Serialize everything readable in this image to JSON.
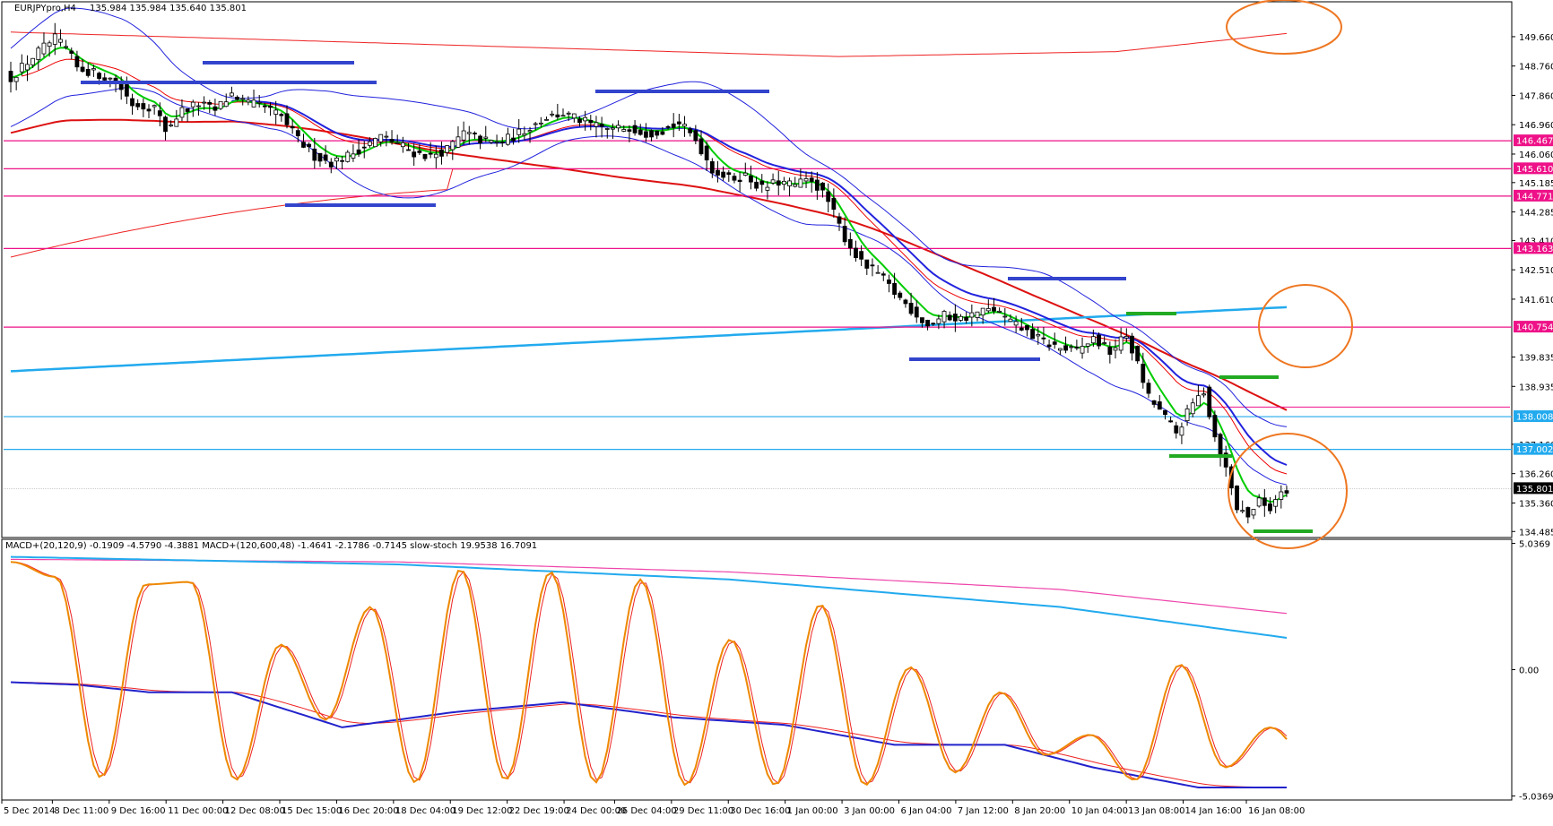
{
  "window": {
    "title": "EURJPYpro,H4",
    "ohlc": "135.984 135.984 135.640 135.801"
  },
  "indicator_title": "MACD+(20,120,9) -0.1909 -4.5790 -4.3881  MACD+(120,600,48) -1.4641 -2.1786 -0.7145  slow-stoch 19.9538 16.7091",
  "colors": {
    "candle_bull": "#ffffff",
    "candle_bear": "#000000",
    "bollinger": "#2222dd",
    "ema_fast": "#00cc00",
    "ema_mid": "#ee0000",
    "ema_slow": "#2222dd",
    "sma_long": "#dd1111",
    "envelope": "#ee2222",
    "cyan": "#22aaee",
    "magenta": "#ee1188",
    "markers_blue": "#3344cc",
    "markers_green": "#22aa22",
    "circles": "#ee7722",
    "stoch_main": "#ee8800",
    "stoch_signal": "#ee2222",
    "macd1": "#2222cc",
    "macd2_main": "#22aaee",
    "macd2_signal": "#ee44aa"
  },
  "chart_data": [
    {
      "type": "candlestick",
      "symbol": "EURJPYpro",
      "timeframe": "H4",
      "ylim": [
        134.3,
        150.4
      ],
      "y_ticks": [
        149.66,
        148.76,
        147.86,
        146.96,
        146.06,
        145.185,
        144.285,
        143.41,
        142.51,
        141.61,
        139.835,
        138.935,
        137.16,
        136.26,
        135.36,
        134.485
      ],
      "price_levels": [
        {
          "value": "146.467",
          "color": "#ee1188"
        },
        {
          "value": "145.610",
          "color": "#ee1188"
        },
        {
          "value": "144.771",
          "color": "#ee1188"
        },
        {
          "value": "143.163",
          "color": "#ee1188"
        },
        {
          "value": "140.754",
          "color": "#ee1188"
        },
        {
          "value": "138.008",
          "color": "#22aaee"
        },
        {
          "value": "137.002",
          "color": "#22aaee"
        },
        {
          "value": "135.801",
          "color": "#000000"
        }
      ],
      "extra_level": 138.3,
      "close_points": [
        [
          0,
          148.4
        ],
        [
          5,
          149.2
        ],
        [
          8,
          149.6
        ],
        [
          10,
          149.3
        ],
        [
          12,
          148.7
        ],
        [
          16,
          148.5
        ],
        [
          19,
          148.3
        ],
        [
          22,
          147.6
        ],
        [
          26,
          147.5
        ],
        [
          28,
          146.8
        ],
        [
          31,
          147.4
        ],
        [
          34,
          147.6
        ],
        [
          37,
          147.4
        ],
        [
          40,
          147.9
        ],
        [
          43,
          147.6
        ],
        [
          46,
          147.5
        ],
        [
          49,
          147.2
        ],
        [
          52,
          146.5
        ],
        [
          55,
          146.0
        ],
        [
          58,
          145.8
        ],
        [
          61,
          146.0
        ],
        [
          64,
          146.3
        ],
        [
          67,
          146.6
        ],
        [
          70,
          146.4
        ],
        [
          73,
          146.1
        ],
        [
          76,
          146.0
        ],
        [
          79,
          146.2
        ],
        [
          82,
          146.7
        ],
        [
          85,
          146.5
        ],
        [
          88,
          146.4
        ],
        [
          91,
          146.6
        ],
        [
          94,
          146.9
        ],
        [
          97,
          147.2
        ],
        [
          100,
          147.3
        ],
        [
          103,
          147.1
        ],
        [
          106,
          146.9
        ],
        [
          109,
          146.8
        ],
        [
          112,
          146.9
        ],
        [
          115,
          146.7
        ],
        [
          118,
          146.8
        ],
        [
          121,
          147.0
        ],
        [
          124,
          146.5
        ],
        [
          127,
          145.6
        ],
        [
          130,
          145.3
        ],
        [
          133,
          145.4
        ],
        [
          136,
          145.0
        ],
        [
          139,
          145.2
        ],
        [
          142,
          145.1
        ],
        [
          145,
          145.3
        ],
        [
          148,
          144.6
        ],
        [
          151,
          143.5
        ],
        [
          154,
          142.7
        ],
        [
          157,
          142.4
        ],
        [
          160,
          141.8
        ],
        [
          163,
          141.3
        ],
        [
          166,
          140.8
        ],
        [
          169,
          141.1
        ],
        [
          172,
          141.0
        ],
        [
          175,
          141.2
        ],
        [
          178,
          141.3
        ],
        [
          181,
          140.9
        ],
        [
          184,
          140.6
        ],
        [
          187,
          140.3
        ],
        [
          190,
          140.1
        ],
        [
          193,
          140.0
        ],
        [
          196,
          140.4
        ],
        [
          199,
          140.0
        ],
        [
          202,
          140.5
        ],
        [
          204,
          139.6
        ],
        [
          206,
          138.6
        ],
        [
          208,
          138.2
        ],
        [
          211,
          137.5
        ],
        [
          214,
          138.4
        ],
        [
          216,
          138.8
        ],
        [
          218,
          137.4
        ],
        [
          220,
          136.4
        ],
        [
          222,
          135.2
        ],
        [
          224,
          135.0
        ],
        [
          226,
          135.4
        ],
        [
          228,
          135.2
        ],
        [
          230,
          135.8
        ],
        [
          231,
          135.8
        ]
      ],
      "x_tick_labels": [
        "5 Dec 2014",
        "8 Dec 11:00",
        "9 Dec 16:00",
        "11 Dec 00:00",
        "12 Dec 08:00",
        "15 Dec 15:00",
        "16 Dec 20:00",
        "18 Dec 04:00",
        "19 Dec 12:00",
        "22 Dec 19:00",
        "24 Dec 00:00",
        "26 Dec 04:00",
        "29 Dec 11:00",
        "30 Dec 16:00",
        "1 Jan 00:00",
        "3 Jan 00:00",
        "6 Jan 04:00",
        "7 Jan 12:00",
        "8 Jan 20:00",
        "10 Jan 04:00",
        "13 Jan 08:00",
        "14 Jan 16:00",
        "16 Jan 08:00"
      ],
      "x_tick_index": [
        0,
        8,
        17,
        26,
        35,
        44,
        53,
        62,
        71,
        80,
        89,
        97,
        106,
        115,
        124,
        133,
        142,
        151,
        160,
        169,
        178,
        187,
        197
      ]
    },
    {
      "type": "line",
      "indicator": "MACD+ / slow-stoch",
      "ylim": [
        -5.2,
        5.2
      ],
      "y_ticks": [
        5.0369,
        0.0,
        -5.0369
      ],
      "y_tick_labels": [
        "5.0369",
        "0.00",
        "-5.0369"
      ],
      "stoch_extremes": [
        4.3,
        3.7,
        -4.3,
        3.4,
        3.5,
        -4.4,
        1.0,
        -2.0,
        2.5,
        -4.5,
        4.0,
        -4.4,
        3.9,
        -4.5,
        3.6,
        -4.6,
        1.2,
        -4.6,
        2.6,
        -4.6,
        0.1,
        -4.1,
        -0.9,
        -3.4,
        -2.6,
        -4.4,
        0.2,
        -3.9,
        -2.3
      ],
      "macd1": [
        [
          0,
          -0.5
        ],
        [
          12,
          -0.6
        ],
        [
          25,
          -0.9
        ],
        [
          40,
          -0.9
        ],
        [
          60,
          -2.3
        ],
        [
          80,
          -1.7
        ],
        [
          100,
          -1.3
        ],
        [
          120,
          -1.9
        ],
        [
          140,
          -2.2
        ],
        [
          160,
          -3.0
        ],
        [
          180,
          -3.0
        ],
        [
          196,
          -3.9
        ],
        [
          215,
          -4.7
        ]
      ],
      "macd2_main": [
        [
          0,
          4.5
        ],
        [
          70,
          4.2
        ],
        [
          130,
          3.6
        ],
        [
          190,
          2.5
        ],
        [
          250,
          0.7
        ],
        [
          290,
          -1.3
        ]
      ],
      "macd2_signal": [
        [
          0,
          4.4
        ],
        [
          70,
          4.3
        ],
        [
          130,
          3.9
        ],
        [
          190,
          3.2
        ],
        [
          250,
          1.8
        ],
        [
          290,
          -0.4
        ]
      ]
    }
  ]
}
